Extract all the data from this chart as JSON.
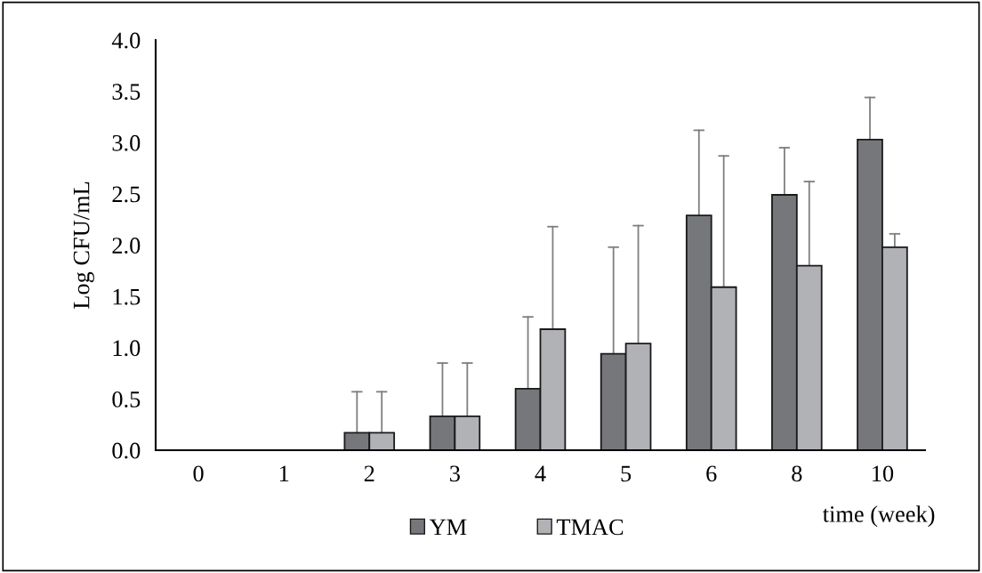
{
  "chart_data": {
    "type": "bar",
    "xlabel": "time (week)",
    "ylabel": "Log CFU/mL",
    "categories": [
      "0",
      "1",
      "2",
      "3",
      "4",
      "5",
      "6",
      "8",
      "10"
    ],
    "series": [
      {
        "name": "YM",
        "color": "#76777b",
        "values": [
          0,
          0,
          0.17,
          0.33,
          0.6,
          0.94,
          2.29,
          2.49,
          3.03
        ],
        "errors": [
          null,
          null,
          [
            0.17,
            0.57
          ],
          [
            0.33,
            0.85
          ],
          [
            0.6,
            1.3
          ],
          [
            0.94,
            1.98
          ],
          [
            2.29,
            3.12
          ],
          [
            2.49,
            2.95
          ],
          [
            3.03,
            3.44
          ]
        ]
      },
      {
        "name": "TMAC",
        "color": "#b1b2b6",
        "values": [
          0,
          0,
          0.17,
          0.33,
          1.18,
          1.04,
          1.59,
          1.8,
          1.98
        ],
        "errors": [
          null,
          null,
          [
            0.17,
            0.57
          ],
          [
            0.33,
            0.85
          ],
          [
            1.18,
            2.18
          ],
          [
            1.04,
            2.19
          ],
          [
            1.59,
            2.87
          ],
          [
            1.8,
            2.62
          ],
          [
            1.98,
            2.11
          ]
        ]
      }
    ],
    "ylim": [
      0,
      4
    ],
    "yticks": [
      {
        "value": 0,
        "label": "0.0"
      },
      {
        "value": 0.5,
        "label": "0.5"
      },
      {
        "value": 1,
        "label": "1.0"
      },
      {
        "value": 1.5,
        "label": "1.5"
      },
      {
        "value": 2,
        "label": "2.0"
      },
      {
        "value": 2.5,
        "label": "2.5"
      },
      {
        "value": 3,
        "label": "3.0"
      },
      {
        "value": 3.5,
        "label": "3.5"
      },
      {
        "value": 4,
        "label": "4.0"
      }
    ],
    "grid": false,
    "legend": "bottom"
  }
}
